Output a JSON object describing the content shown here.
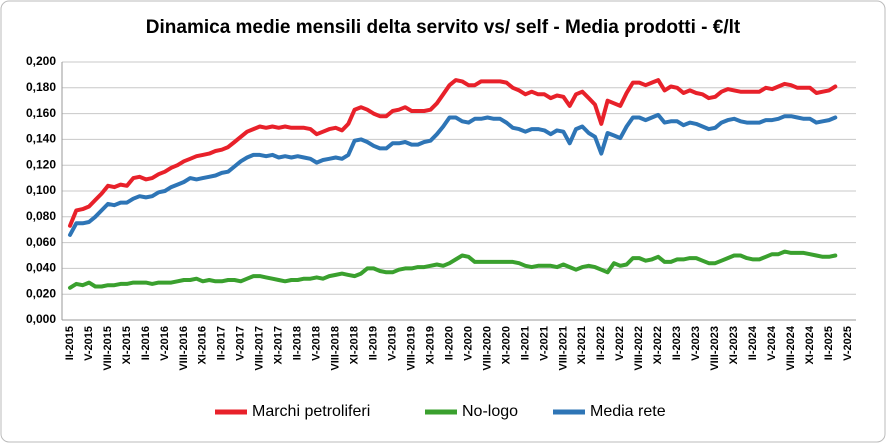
{
  "chart_data": {
    "type": "line",
    "title": "Dinamica medie mensili delta servito vs/ self - Media prodotti - €/lt",
    "categories": [
      "II-2015",
      null,
      null,
      "V-2015",
      null,
      null,
      "VIII-2015",
      null,
      null,
      "XI-2015",
      null,
      null,
      "II-2016",
      null,
      null,
      "V-2016",
      null,
      null,
      "VIII-2016",
      null,
      null,
      "XI-2016",
      null,
      null,
      "II-2017",
      null,
      null,
      "V-2017",
      null,
      null,
      "VIII-2017",
      null,
      null,
      "XI-2017",
      null,
      null,
      "II-2018",
      null,
      null,
      "V-2018",
      null,
      null,
      "VIII-2018",
      null,
      null,
      "XI-2018",
      null,
      null,
      "II-2019",
      null,
      null,
      "V-2019",
      null,
      null,
      "VIII-2019",
      null,
      null,
      "XI-2019",
      null,
      null,
      "II-2020",
      null,
      null,
      "V-2020",
      null,
      null,
      "VIII-2020",
      null,
      null,
      "XI-2020",
      null,
      null,
      "II-2021",
      null,
      null,
      "V-2021",
      null,
      null,
      "VIII-2021",
      null,
      null,
      "XI-2021",
      null,
      null,
      "II-2022",
      null,
      null,
      "V-2022",
      null,
      null,
      "VIII-2022",
      null,
      null,
      "XI-2022",
      null,
      null,
      "II-2023",
      null,
      null,
      "V-2023",
      null,
      null,
      "VIII-2023",
      null,
      null,
      "XI-2023",
      null,
      null,
      "II-2024",
      null,
      null,
      "V-2024",
      null,
      null,
      "VIII-2024",
      null,
      null,
      "XI-2024",
      null,
      null,
      "II-2025",
      null,
      null,
      "V-2025"
    ],
    "series": [
      {
        "name": "Marchi petroliferi",
        "color": "#e8212a",
        "values": [
          0.073,
          0.085,
          0.086,
          0.088,
          0.093,
          0.098,
          0.104,
          0.103,
          0.105,
          0.104,
          0.11,
          0.111,
          0.109,
          0.11,
          0.113,
          0.115,
          0.118,
          0.12,
          0.123,
          0.125,
          0.127,
          0.128,
          0.129,
          0.131,
          0.132,
          0.134,
          0.138,
          0.142,
          0.146,
          0.148,
          0.15,
          0.149,
          0.15,
          0.149,
          0.15,
          0.149,
          0.149,
          0.149,
          0.148,
          0.144,
          0.146,
          0.148,
          0.149,
          0.147,
          0.152,
          0.163,
          0.165,
          0.163,
          0.16,
          0.158,
          0.158,
          0.162,
          0.163,
          0.165,
          0.162,
          0.162,
          0.162,
          0.163,
          0.168,
          0.175,
          0.182,
          0.186,
          0.185,
          0.182,
          0.182,
          0.185,
          0.185,
          0.185,
          0.185,
          0.184,
          0.18,
          0.178,
          0.175,
          0.177,
          0.175,
          0.175,
          0.172,
          0.174,
          0.173,
          0.166,
          0.175,
          0.177,
          0.172,
          0.167,
          0.152,
          0.17,
          0.168,
          0.166,
          0.176,
          0.184,
          0.184,
          0.182,
          0.184,
          0.186,
          0.178,
          0.181,
          0.18,
          0.176,
          0.178,
          0.176,
          0.175,
          0.172,
          0.173,
          0.177,
          0.179,
          0.178,
          0.177,
          0.177,
          0.177,
          0.177,
          0.18,
          0.179,
          0.181,
          0.183,
          0.182,
          0.18,
          0.18,
          0.18,
          0.176,
          0.177,
          0.178,
          0.181,
          null,
          null
        ]
      },
      {
        "name": "No-logo",
        "color": "#3aa02e",
        "values": [
          0.025,
          0.028,
          0.027,
          0.029,
          0.026,
          0.026,
          0.027,
          0.027,
          0.028,
          0.028,
          0.029,
          0.029,
          0.029,
          0.028,
          0.029,
          0.029,
          0.029,
          0.03,
          0.031,
          0.031,
          0.032,
          0.03,
          0.031,
          0.03,
          0.03,
          0.031,
          0.031,
          0.03,
          0.032,
          0.034,
          0.034,
          0.033,
          0.032,
          0.031,
          0.03,
          0.031,
          0.031,
          0.032,
          0.032,
          0.033,
          0.032,
          0.034,
          0.035,
          0.036,
          0.035,
          0.034,
          0.036,
          0.04,
          0.04,
          0.038,
          0.037,
          0.037,
          0.039,
          0.04,
          0.04,
          0.041,
          0.041,
          0.042,
          0.043,
          0.042,
          0.044,
          0.047,
          0.05,
          0.049,
          0.045,
          0.045,
          0.045,
          0.045,
          0.045,
          0.045,
          0.045,
          0.044,
          0.042,
          0.041,
          0.042,
          0.042,
          0.042,
          0.041,
          0.043,
          0.041,
          0.039,
          0.041,
          0.042,
          0.041,
          0.039,
          0.037,
          0.044,
          0.042,
          0.043,
          0.048,
          0.048,
          0.046,
          0.047,
          0.049,
          0.045,
          0.045,
          0.047,
          0.047,
          0.048,
          0.048,
          0.046,
          0.044,
          0.044,
          0.046,
          0.048,
          0.05,
          0.05,
          0.048,
          0.047,
          0.047,
          0.049,
          0.051,
          0.051,
          0.053,
          0.052,
          0.052,
          0.052,
          0.051,
          0.05,
          0.049,
          0.049,
          0.05,
          null,
          null
        ]
      },
      {
        "name": "Media rete",
        "color": "#2e75b6",
        "values": [
          0.066,
          0.075,
          0.075,
          0.076,
          0.08,
          0.085,
          0.09,
          0.089,
          0.091,
          0.091,
          0.094,
          0.096,
          0.095,
          0.096,
          0.099,
          0.1,
          0.103,
          0.105,
          0.107,
          0.11,
          0.109,
          0.11,
          0.111,
          0.112,
          0.114,
          0.115,
          0.119,
          0.123,
          0.126,
          0.128,
          0.128,
          0.127,
          0.128,
          0.126,
          0.127,
          0.126,
          0.127,
          0.126,
          0.125,
          0.122,
          0.124,
          0.125,
          0.126,
          0.125,
          0.128,
          0.139,
          0.14,
          0.138,
          0.135,
          0.133,
          0.133,
          0.137,
          0.137,
          0.138,
          0.136,
          0.136,
          0.138,
          0.139,
          0.144,
          0.15,
          0.157,
          0.157,
          0.154,
          0.153,
          0.156,
          0.156,
          0.157,
          0.156,
          0.156,
          0.153,
          0.149,
          0.148,
          0.146,
          0.148,
          0.148,
          0.147,
          0.144,
          0.147,
          0.146,
          0.137,
          0.148,
          0.15,
          0.145,
          0.142,
          0.129,
          0.145,
          0.143,
          0.141,
          0.15,
          0.157,
          0.157,
          0.155,
          0.157,
          0.159,
          0.153,
          0.154,
          0.154,
          0.151,
          0.153,
          0.152,
          0.15,
          0.148,
          0.149,
          0.153,
          0.155,
          0.156,
          0.154,
          0.153,
          0.153,
          0.153,
          0.155,
          0.155,
          0.156,
          0.158,
          0.158,
          0.157,
          0.156,
          0.156,
          0.153,
          0.154,
          0.155,
          0.157,
          null,
          null
        ]
      }
    ],
    "ylim": [
      0,
      0.2
    ],
    "yticks": [
      {
        "value": 0,
        "label": "0,000"
      },
      {
        "value": 0.02,
        "label": "0,020"
      },
      {
        "value": 0.04,
        "label": "0,040"
      },
      {
        "value": 0.06,
        "label": "0,060"
      },
      {
        "value": 0.08,
        "label": "0,080"
      },
      {
        "value": 0.1,
        "label": "0,100"
      },
      {
        "value": 0.12,
        "label": "0,120"
      },
      {
        "value": 0.14,
        "label": "0,140"
      },
      {
        "value": 0.16,
        "label": "0,160"
      },
      {
        "value": 0.18,
        "label": "0,180"
      },
      {
        "value": 0.2,
        "label": "0,200"
      }
    ],
    "grid": true,
    "legend": "bottom"
  }
}
